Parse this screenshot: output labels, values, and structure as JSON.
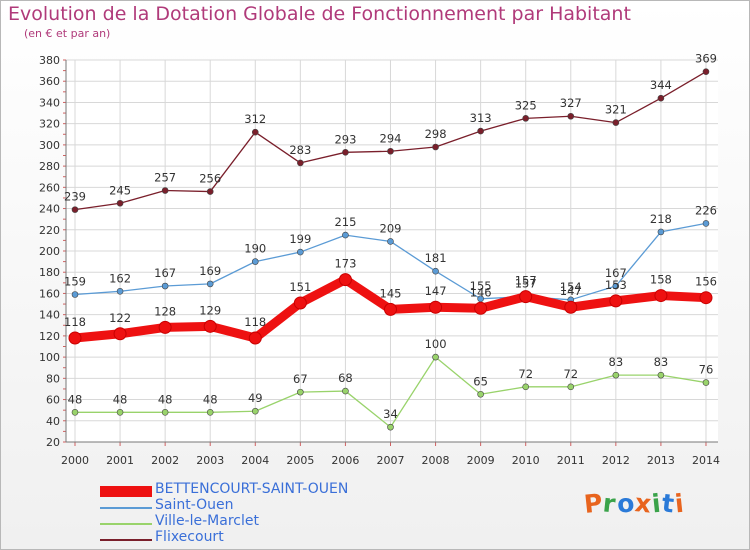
{
  "header": {
    "title": "Evolution de la Dotation Globale de Fonctionnement par Habitant",
    "subtitle": "(en € et par an)"
  },
  "logo": {
    "text": "Proxiti",
    "colors": [
      "#e8641e",
      "#3aa34a",
      "#2a7ad8",
      "#e8641e",
      "#3aa34a",
      "#2a7ad8",
      "#e8641e"
    ]
  },
  "chart_data": {
    "type": "line",
    "title": "Evolution de la Dotation Globale de Fonctionnement par Habitant",
    "subtitle": "(en € et par an)",
    "xlabel": "",
    "ylabel": "",
    "x": [
      "2000",
      "2001",
      "2002",
      "2003",
      "2004",
      "2005",
      "2006",
      "2007",
      "2008",
      "2009",
      "2010",
      "2011",
      "2012",
      "2013",
      "2014"
    ],
    "ylim": [
      20,
      380
    ],
    "yticks": [
      20,
      40,
      60,
      80,
      100,
      120,
      140,
      160,
      180,
      200,
      220,
      240,
      260,
      280,
      300,
      320,
      340,
      360,
      380
    ],
    "grid": true,
    "legend": "bottom-left",
    "series": [
      {
        "name": "BETTENCOURT-SAINT-OUEN",
        "color": "#ee1111",
        "values": [
          118,
          122,
          128,
          129,
          118,
          151,
          173,
          145,
          147,
          146,
          157,
          147,
          153,
          158,
          156
        ],
        "labels": [
          "118",
          "122",
          "128",
          "129",
          "118",
          "151",
          "173",
          "145",
          "147",
          "146",
          "157",
          "147",
          "153",
          "158",
          "156"
        ]
      },
      {
        "name": "Saint-Ouen",
        "color": "#5b9bd5",
        "values": [
          159,
          162,
          167,
          169,
          190,
          199,
          215,
          209,
          181,
          155,
          157,
          154,
          167,
          218,
          226
        ],
        "labels": [
          "159",
          "162",
          "167",
          "169",
          "190",
          "199",
          "215",
          "209",
          "181",
          "155",
          "157",
          "154",
          "167",
          "218",
          "226"
        ]
      },
      {
        "name": "Ville-le-Marclet",
        "color": "#99d36b",
        "values": [
          48,
          48,
          48,
          48,
          49,
          67,
          68,
          34,
          100,
          65,
          72,
          72,
          83,
          83,
          76
        ],
        "labels": [
          "48",
          "48",
          "48",
          "48",
          "49",
          "67",
          "68",
          "34",
          "100",
          "65",
          "72",
          "72",
          "83",
          "83",
          "76"
        ]
      },
      {
        "name": "Flixecourt",
        "color": "#7a1f2b",
        "values": [
          239,
          245,
          257,
          256,
          312,
          283,
          293,
          294,
          298,
          313,
          325,
          327,
          321,
          344,
          369
        ],
        "labels": [
          "239",
          "245",
          "257",
          "256",
          "312",
          "283",
          "293",
          "294",
          "298",
          "313",
          "325",
          "327",
          "321",
          "344",
          "369"
        ]
      }
    ]
  }
}
